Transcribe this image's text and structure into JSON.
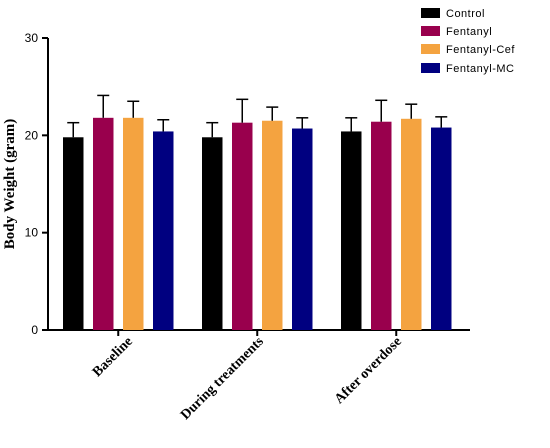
{
  "chart_data": {
    "type": "bar",
    "title": "",
    "xlabel": "",
    "ylabel": "Body Weight (gram)",
    "ylim": [
      0,
      30
    ],
    "yticks": [
      "0",
      "10",
      "20",
      "30"
    ],
    "grid": false,
    "legend_position": "top-right",
    "categories": [
      "Baseline",
      "During treatments",
      "After overdose"
    ],
    "series": [
      {
        "name": "Control",
        "color": "#000000",
        "values": [
          19.8,
          19.8,
          20.4
        ],
        "errors": [
          1.5,
          1.5,
          1.4
        ]
      },
      {
        "name": "Fentanyl",
        "color": "#99004d",
        "values": [
          21.8,
          21.3,
          21.4
        ],
        "errors": [
          2.3,
          2.4,
          2.2
        ]
      },
      {
        "name": "Fentanyl-Cef",
        "color": "#f4a340",
        "values": [
          21.8,
          21.5,
          21.7
        ],
        "errors": [
          1.7,
          1.4,
          1.5
        ]
      },
      {
        "name": "Fentanyl-MC",
        "color": "#000080",
        "values": [
          20.4,
          20.7,
          20.8
        ],
        "errors": [
          1.2,
          1.1,
          1.1
        ]
      }
    ]
  }
}
